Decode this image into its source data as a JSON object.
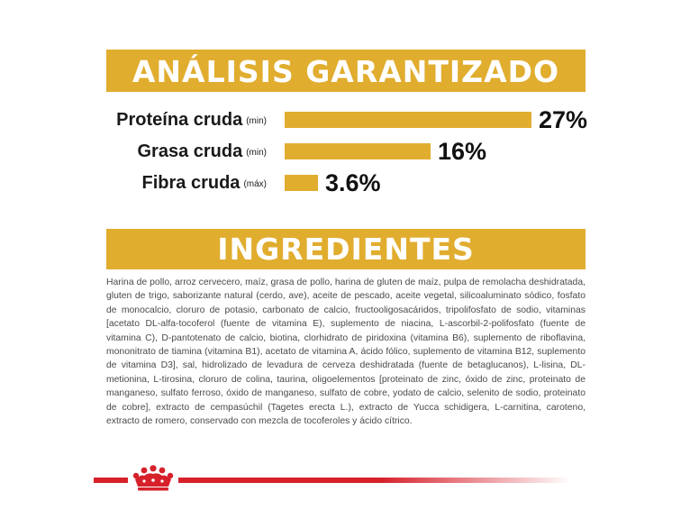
{
  "analysis": {
    "title": "ANÁLISIS GARANTIZADO",
    "rows": [
      {
        "name": "Proteína cruda",
        "qualifier": "(min)",
        "value_text": "27%",
        "value": 27
      },
      {
        "name": "Grasa cruda",
        "qualifier": "(min)",
        "value_text": "16%",
        "value": 16
      },
      {
        "name": "Fibra cruda",
        "qualifier": "(máx)",
        "value_text": "3.6%",
        "value": 3.6
      }
    ]
  },
  "ingredients": {
    "title": "INGREDIENTES",
    "text": "Harina de pollo, arroz cervecero, maíz, grasa de pollo, harina de gluten de maíz, pulpa de remolacha deshidratada, gluten de trigo, saborizante natural (cerdo, ave), aceite de pescado, aceite vegetal, silicoaluminato sódico, fosfato de monocalcio, cloruro de potasio, carbonato de calcio, fructooligosacáridos, tripolifosfato de sodio, vitaminas [acetato DL-alfa-tocoferol (fuente de vitamina E), suplemento de niacina, L-ascorbil-2-polifosfato (fuente de vitamina C), D-pantotenato de calcio, biotina, clorhidrato de piridoxina (vitamina B6), suplemento de riboflavina, mononitrato de tiamina (vitamina B1), acetato de vitamina A, ácido fólico, suplemento de vitamina B12, suplemento de vitamina D3], sal, hidrolizado de levadura de cerveza deshidratada (fuente de betaglucanos), L-lisina, DL-metionina, L-tirosina, cloruro de colina, taurina, oligoelementos [proteinato de zinc, óxido de zinc, proteinato de manganeso, sulfato ferroso, óxido de manganeso, sulfato de cobre, yodato de calcio, selenito de sodio, proteinato de cobre], extracto de cempasúchil (Tagetes erecta L.), extracto de Yucca schidigera, L-carnitina, caroteno, extracto de romero, conservado con mezcla de tocoferoles y ácido cítrico."
  },
  "colors": {
    "accent": "#e1ad2f",
    "brand_red": "#d6212b"
  },
  "icons": {
    "logo": "crown-icon"
  }
}
